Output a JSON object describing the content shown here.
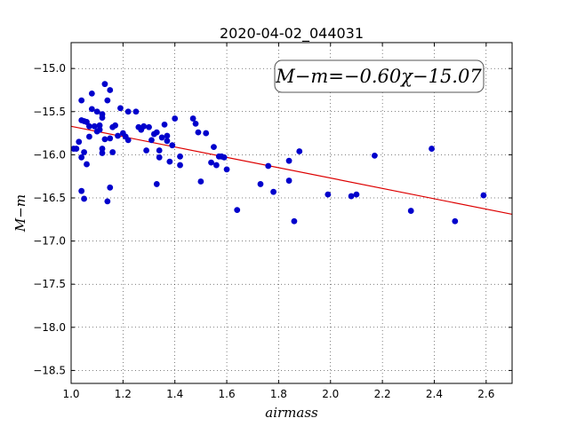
{
  "chart_data": {
    "type": "scatter",
    "title": "2020-04-02_044031",
    "xlabel": "airmass",
    "ylabel": "M−m",
    "xlim": [
      1.0,
      2.7
    ],
    "ylim": [
      -18.65,
      -14.7
    ],
    "y_inverted": true,
    "xticks": [
      1.0,
      1.2,
      1.4,
      1.6,
      1.8,
      2.0,
      2.2,
      2.4,
      2.6
    ],
    "xtick_labels": [
      "1.0",
      "1.2",
      "1.4",
      "1.6",
      "1.8",
      "2.0",
      "2.2",
      "2.4",
      "2.6"
    ],
    "yticks": [
      -15.0,
      -15.5,
      -16.0,
      -16.5,
      -17.0,
      -17.5,
      -18.0,
      -18.5
    ],
    "ytick_labels": [
      "−15.0",
      "−15.5",
      "−16.0",
      "−16.5",
      "−17.0",
      "−17.5",
      "−18.0",
      "−18.5"
    ],
    "grid": true,
    "annotation": "M−m=−0.60χ−15.07",
    "marker_color": "#0000cc",
    "fit_color": "#dd0000",
    "fit": {
      "slope": -0.6,
      "intercept": -15.07
    },
    "points": [
      [
        1.01,
        -15.93
      ],
      [
        1.02,
        -15.93
      ],
      [
        1.03,
        -15.85
      ],
      [
        1.04,
        -15.37
      ],
      [
        1.04,
        -15.6
      ],
      [
        1.04,
        -16.03
      ],
      [
        1.04,
        -16.42
      ],
      [
        1.05,
        -16.51
      ],
      [
        1.05,
        -15.61
      ],
      [
        1.05,
        -15.97
      ],
      [
        1.06,
        -15.62
      ],
      [
        1.06,
        -16.11
      ],
      [
        1.07,
        -15.79
      ],
      [
        1.07,
        -15.67
      ],
      [
        1.08,
        -15.29
      ],
      [
        1.08,
        -15.47
      ],
      [
        1.09,
        -15.67
      ],
      [
        1.1,
        -15.5
      ],
      [
        1.1,
        -15.73
      ],
      [
        1.11,
        -15.66
      ],
      [
        1.11,
        -15.71
      ],
      [
        1.12,
        -15.53
      ],
      [
        1.12,
        -15.93
      ],
      [
        1.12,
        -15.98
      ],
      [
        1.12,
        -15.57
      ],
      [
        1.13,
        -15.82
      ],
      [
        1.13,
        -15.18
      ],
      [
        1.14,
        -15.37
      ],
      [
        1.14,
        -16.54
      ],
      [
        1.15,
        -15.81
      ],
      [
        1.15,
        -15.25
      ],
      [
        1.15,
        -16.38
      ],
      [
        1.16,
        -15.68
      ],
      [
        1.16,
        -15.97
      ],
      [
        1.17,
        -15.66
      ],
      [
        1.18,
        -15.78
      ],
      [
        1.19,
        -15.46
      ],
      [
        1.2,
        -15.75
      ],
      [
        1.21,
        -15.79
      ],
      [
        1.22,
        -15.83
      ],
      [
        1.22,
        -15.5
      ],
      [
        1.25,
        -15.5
      ],
      [
        1.26,
        -15.68
      ],
      [
        1.27,
        -15.71
      ],
      [
        1.28,
        -15.67
      ],
      [
        1.29,
        -15.95
      ],
      [
        1.3,
        -15.68
      ],
      [
        1.31,
        -15.83
      ],
      [
        1.32,
        -15.76
      ],
      [
        1.33,
        -15.74
      ],
      [
        1.33,
        -16.34
      ],
      [
        1.34,
        -16.03
      ],
      [
        1.34,
        -15.95
      ],
      [
        1.35,
        -15.8
      ],
      [
        1.36,
        -15.65
      ],
      [
        1.37,
        -15.84
      ],
      [
        1.37,
        -15.78
      ],
      [
        1.38,
        -16.08
      ],
      [
        1.39,
        -15.89
      ],
      [
        1.4,
        -15.58
      ],
      [
        1.42,
        -16.02
      ],
      [
        1.42,
        -16.12
      ],
      [
        1.47,
        -15.58
      ],
      [
        1.48,
        -15.64
      ],
      [
        1.49,
        -15.74
      ],
      [
        1.5,
        -16.31
      ],
      [
        1.52,
        -15.75
      ],
      [
        1.54,
        -16.09
      ],
      [
        1.55,
        -15.91
      ],
      [
        1.56,
        -16.12
      ],
      [
        1.57,
        -16.02
      ],
      [
        1.58,
        -16.02
      ],
      [
        1.59,
        -16.03
      ],
      [
        1.6,
        -16.17
      ],
      [
        1.64,
        -16.64
      ],
      [
        1.73,
        -16.34
      ],
      [
        1.76,
        -16.13
      ],
      [
        1.78,
        -16.43
      ],
      [
        1.84,
        -16.07
      ],
      [
        1.84,
        -16.3
      ],
      [
        1.86,
        -16.77
      ],
      [
        1.88,
        -15.96
      ],
      [
        1.99,
        -16.46
      ],
      [
        2.08,
        -16.48
      ],
      [
        2.1,
        -16.46
      ],
      [
        2.17,
        -16.01
      ],
      [
        2.31,
        -16.65
      ],
      [
        2.39,
        -15.93
      ],
      [
        2.48,
        -16.77
      ],
      [
        2.59,
        -16.47
      ]
    ]
  }
}
